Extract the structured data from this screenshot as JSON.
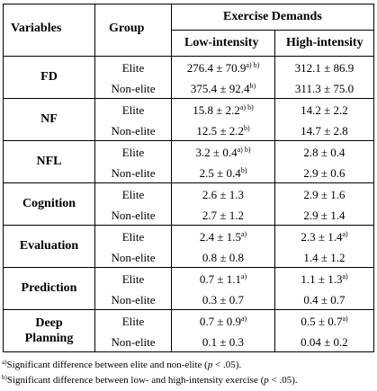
{
  "headers": {
    "variables": "Variables",
    "group": "Group",
    "exercise_demands": "Exercise Demands",
    "low": "Low-intensity",
    "high": "High-intensity"
  },
  "rows": [
    {
      "variable": [
        "FD"
      ],
      "elite": {
        "group": "Elite",
        "low": "276.4 ± 70.9",
        "low_sup": "a) b)",
        "high": "312.1 ± 86.9",
        "high_sup": ""
      },
      "nonelite": {
        "group": "Non-elite",
        "low": "375.4 ± 92.4",
        "low_sup": "b)",
        "high": "311.3 ± 75.0",
        "high_sup": ""
      }
    },
    {
      "variable": [
        "NF"
      ],
      "elite": {
        "group": "Elite",
        "low": "15.8 ± 2.2",
        "low_sup": "a) b)",
        "high": "14.2 ± 2.2",
        "high_sup": ""
      },
      "nonelite": {
        "group": "Non-elite",
        "low": "12.5 ± 2.2",
        "low_sup": "b)",
        "high": "14.7 ± 2.8",
        "high_sup": ""
      }
    },
    {
      "variable": [
        "NFL"
      ],
      "elite": {
        "group": "Elite",
        "low": "3.2 ± 0.4",
        "low_sup": "a) b)",
        "high": "2.8 ± 0.4",
        "high_sup": ""
      },
      "nonelite": {
        "group": "Non-elite",
        "low": "2.5 ± 0.4",
        "low_sup": "b)",
        "high": "2.9 ± 0.6",
        "high_sup": ""
      }
    },
    {
      "variable": [
        "Cognition"
      ],
      "elite": {
        "group": "Elite",
        "low": "2.6 ± 1.3",
        "low_sup": "",
        "high": "2.9 ± 1.6",
        "high_sup": ""
      },
      "nonelite": {
        "group": "Non-elite",
        "low": "2.7 ± 1.2",
        "low_sup": "",
        "high": "2.9 ± 1.4",
        "high_sup": ""
      }
    },
    {
      "variable": [
        "Evaluation"
      ],
      "elite": {
        "group": "Elite",
        "low": "2.4 ± 1.5",
        "low_sup": "a)",
        "high": "2.3 ± 1.4",
        "high_sup": "a)"
      },
      "nonelite": {
        "group": "Non-elite",
        "low": "0.8 ± 0.8",
        "low_sup": "",
        "high": "1.4 ± 1.2",
        "high_sup": ""
      }
    },
    {
      "variable": [
        "Prediction"
      ],
      "elite": {
        "group": "Elite",
        "low": "0.7 ± 1.1",
        "low_sup": "a)",
        "high": "1.1 ± 1.3",
        "high_sup": "a)"
      },
      "nonelite": {
        "group": "Non-elite",
        "low": "0.3 ± 0.7",
        "low_sup": "",
        "high": "0.4 ± 0.7",
        "high_sup": ""
      }
    },
    {
      "variable": [
        "Deep",
        "Planning"
      ],
      "elite": {
        "group": "Elite",
        "low": "0.7 ± 0.9",
        "low_sup": "a)",
        "high": "0.5 ± 0.7",
        "high_sup": "a)"
      },
      "nonelite": {
        "group": "Non-elite",
        "low": "0.1 ± 0.3",
        "low_sup": "",
        "high": "0.04 ± 0.2",
        "high_sup": ""
      }
    }
  ],
  "footnotes": [
    {
      "mark": "a)",
      "text": "Significant difference between elite and non-elite (",
      "italic": "p",
      "tail": " < .05)."
    },
    {
      "mark": "b)",
      "text": "Significant difference between low- and high-intensity exercise (",
      "italic": "p",
      "tail": " < .05)."
    }
  ]
}
